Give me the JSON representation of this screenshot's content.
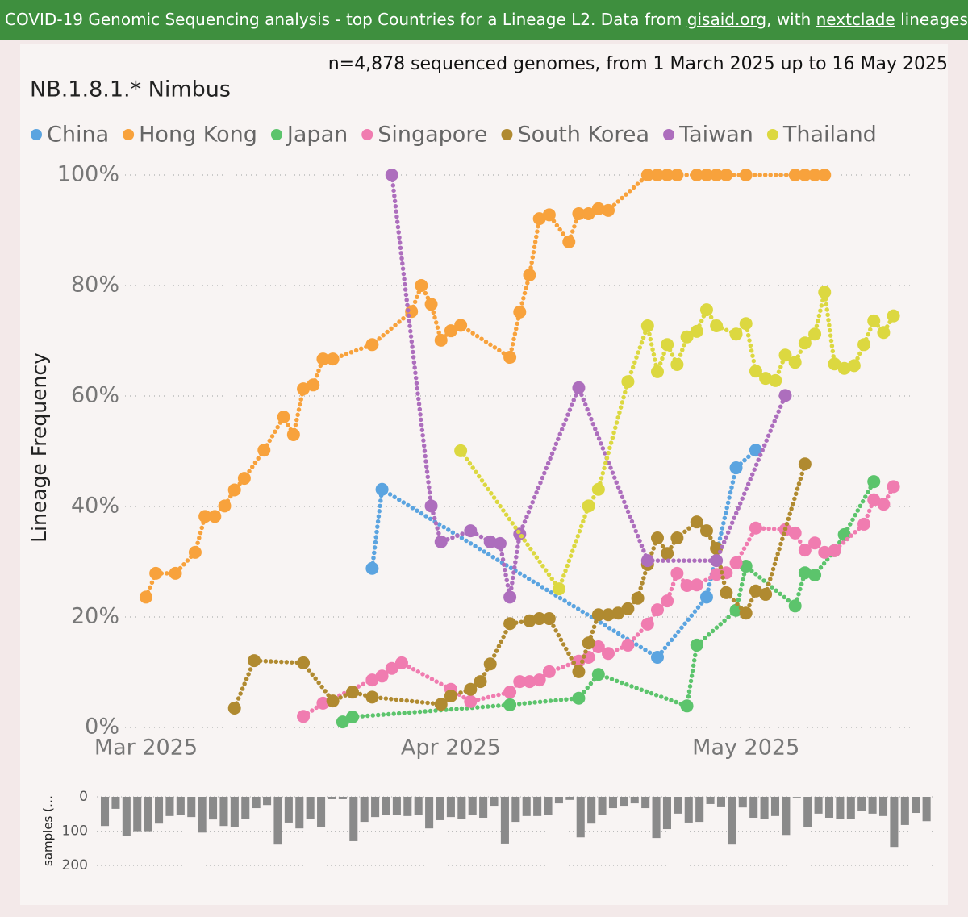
{
  "banner": {
    "parts": [
      "COVID-19 Genomic Sequencing analysis - top Countries for a Lineage L2. Data from ",
      "gisaid.org",
      ", with ",
      "nextclade",
      " lineages Sourc"
    ]
  },
  "chart_data": [
    {
      "type": "line",
      "title": "NB.1.8.1.* Nimbus",
      "subtitle": "n=4,878 sequenced genomes, from 1 March 2025 up to 16 May 2025",
      "y_label": "Lineage Frequency",
      "xlim": [
        -5,
        78
      ],
      "xticks": [
        {
          "value": 0,
          "label": "Mar 2025"
        },
        {
          "value": 31,
          "label": "Apr 2025"
        },
        {
          "value": 61,
          "label": "May 2025"
        }
      ],
      "ylim": [
        0,
        100
      ],
      "yticks": [
        {
          "value": 0,
          "label": "0%"
        },
        {
          "value": 20,
          "label": "20%"
        },
        {
          "value": 40,
          "label": "40%"
        },
        {
          "value": 60,
          "label": "60%"
        },
        {
          "value": 80,
          "label": "80%"
        },
        {
          "value": 100,
          "label": "100%"
        }
      ],
      "grid": true,
      "legend": "top",
      "series": [
        {
          "name": "China",
          "color": "#5ba4e0",
          "x": [
            23,
            24,
            52,
            57,
            60,
            62
          ],
          "values": [
            28.8,
            43.1,
            12.7,
            23.6,
            47,
            50.2
          ]
        },
        {
          "name": "Hong Kong",
          "color": "#f8a23c",
          "x": [
            0,
            1,
            3,
            5,
            6,
            7,
            8,
            9,
            10,
            12,
            14,
            15,
            16,
            17,
            18,
            19,
            23,
            27,
            28,
            29,
            30,
            31,
            32,
            37,
            38,
            39,
            40,
            41,
            43,
            44,
            45,
            46,
            47,
            51,
            52,
            53,
            54,
            56,
            57,
            58,
            59,
            61,
            66,
            67,
            68,
            69
          ],
          "values": [
            23.6,
            27.9,
            27.9,
            31.7,
            38.2,
            38.2,
            40.1,
            43,
            45.1,
            50.2,
            56.2,
            53,
            61.3,
            62,
            66.7,
            66.7,
            69.3,
            75.3,
            80,
            76.6,
            70.1,
            71.8,
            72.8,
            67,
            75.2,
            81.9,
            92.1,
            92.8,
            87.9,
            93,
            93,
            93.9,
            93.6,
            100,
            100,
            100,
            100,
            100,
            100,
            100,
            100,
            100,
            100,
            100,
            100,
            100
          ]
        },
        {
          "name": "Japan",
          "color": "#5cc46c",
          "x": [
            20,
            21,
            37,
            44,
            46,
            55,
            56,
            60,
            61,
            66,
            67,
            68,
            70,
            71,
            74
          ],
          "values": [
            1,
            1.9,
            4.1,
            5.3,
            9.6,
            3.9,
            14.9,
            21.2,
            29.2,
            22,
            28,
            27.6,
            32,
            34.9,
            44.5
          ]
        },
        {
          "name": "Singapore",
          "color": "#f07cb0",
          "x": [
            16,
            18,
            23,
            24,
            25,
            26,
            31,
            33,
            37,
            38,
            39,
            40,
            41,
            44,
            45,
            46,
            47,
            49,
            51,
            52,
            53,
            54,
            55,
            56,
            58,
            59,
            60,
            62,
            65,
            66,
            67,
            68,
            69,
            70,
            73,
            74,
            75,
            76
          ],
          "values": [
            2,
            4.4,
            8.6,
            9.3,
            10.7,
            11.7,
            6.9,
            4.7,
            6.4,
            8.3,
            8.3,
            8.6,
            10.1,
            12,
            12.7,
            14.6,
            13.4,
            14.9,
            18.7,
            21.3,
            22.9,
            27.9,
            25.7,
            25.8,
            27.7,
            28,
            29.8,
            36.1,
            35.8,
            35.2,
            32.1,
            33.4,
            31.7,
            32,
            36.8,
            41.2,
            40.4,
            43.6
          ]
        },
        {
          "name": "South Korea",
          "color": "#b08a30",
          "x": [
            9,
            11,
            16,
            19,
            21,
            23,
            30,
            31,
            33,
            34,
            35,
            37,
            39,
            40,
            41,
            44,
            45,
            46,
            47,
            48,
            49,
            50,
            51,
            52,
            53,
            54,
            56,
            57,
            58,
            59,
            61,
            62,
            63,
            67
          ],
          "values": [
            3.5,
            12.1,
            11.7,
            4.8,
            6.4,
            5.5,
            4.2,
            5.7,
            6.9,
            8.3,
            11.5,
            18.8,
            19.3,
            19.7,
            19.7,
            10.1,
            15.3,
            20.4,
            20.4,
            20.7,
            21.5,
            23.4,
            29.5,
            34.3,
            31.5,
            34.3,
            37.2,
            35.6,
            32.4,
            24.4,
            20.7,
            24.7,
            24.1,
            47.7
          ]
        },
        {
          "name": "Taiwan",
          "color": "#ad6ebd",
          "x": [
            25,
            29,
            30,
            33,
            35,
            36,
            37,
            38,
            44,
            51,
            58,
            65
          ],
          "values": [
            100,
            40.1,
            33.6,
            35.6,
            33.6,
            33.3,
            23.6,
            35,
            61.5,
            30.2,
            30.2,
            60.1
          ]
        },
        {
          "name": "Thailand",
          "color": "#dcd840",
          "x": [
            32,
            42,
            45,
            46,
            49,
            51,
            52,
            53,
            54,
            55,
            56,
            57,
            58,
            60,
            61,
            62,
            63,
            64,
            65,
            66,
            67,
            68,
            69,
            70,
            71,
            72,
            73,
            74,
            75,
            76
          ],
          "values": [
            50.1,
            25.1,
            40.1,
            43.1,
            62.6,
            72.7,
            64.4,
            69.3,
            65.7,
            70.7,
            71.7,
            75.6,
            72.7,
            71.2,
            73.1,
            64.5,
            63.2,
            62.8,
            67.4,
            66.1,
            69.6,
            71.2,
            78.8,
            65.8,
            65,
            65.5,
            69.3,
            73.6,
            71.5,
            74.5
          ]
        }
      ]
    },
    {
      "type": "bar",
      "y_label": "samples (…",
      "color": "#8a8a8a",
      "ylim": [
        0,
        216
      ],
      "yticks": [
        0,
        100,
        200
      ],
      "y_inverted": true,
      "grid": true,
      "values": [
        85,
        35,
        115,
        100,
        100,
        78,
        56,
        54,
        59,
        104,
        66,
        85,
        87,
        64,
        33,
        24,
        139,
        75,
        92,
        64,
        87,
        7,
        7,
        129,
        73,
        59,
        54,
        52,
        56,
        52,
        92,
        68,
        59,
        64,
        52,
        61,
        26,
        136,
        73,
        56,
        56,
        54,
        19,
        9,
        118,
        78,
        54,
        33,
        26,
        19,
        33,
        120,
        94,
        49,
        75,
        73,
        21,
        28,
        139,
        31,
        61,
        64,
        56,
        111,
        2,
        89,
        49,
        61,
        64,
        64,
        42,
        49,
        56,
        146,
        82,
        47,
        71
      ]
    }
  ]
}
